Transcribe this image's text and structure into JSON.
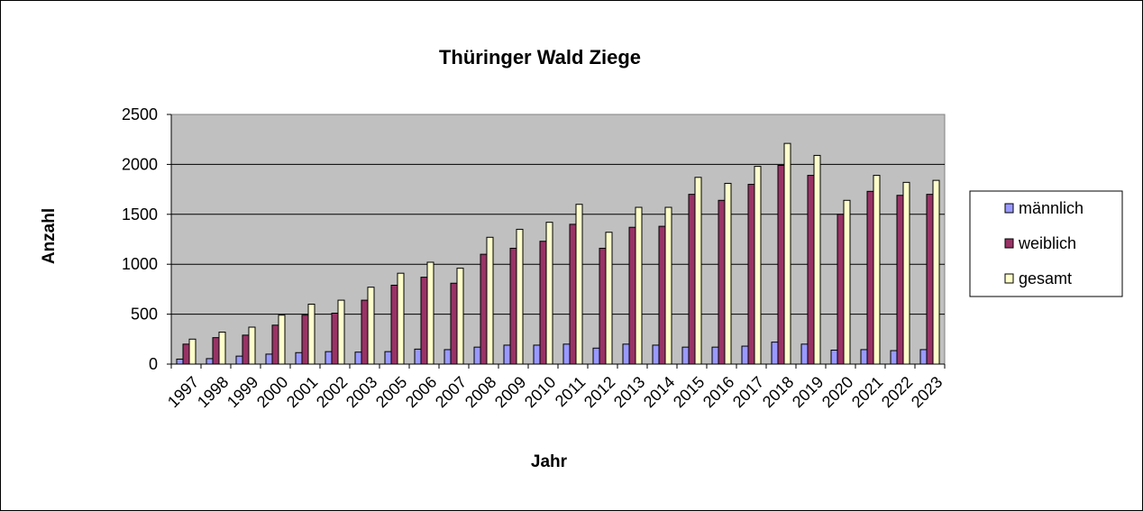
{
  "chart_data": {
    "type": "bar",
    "title": "Thüringer Wald Ziege",
    "xlabel": "Jahr",
    "ylabel": "Anzahl",
    "ylim": [
      0,
      2500
    ],
    "yticks": [
      0,
      500,
      1000,
      1500,
      2000,
      2500
    ],
    "grid": true,
    "legend_position": "right",
    "plot_background": "#c0c0c0",
    "categories": [
      "1997",
      "1998",
      "1999",
      "2000",
      "2001",
      "2002",
      "2003",
      "2005",
      "2006",
      "2007",
      "2008",
      "2009",
      "2010",
      "2011",
      "2012",
      "2013",
      "2014",
      "2015",
      "2016",
      "2017",
      "2018",
      "2019",
      "2020",
      "2021",
      "2022",
      "2023"
    ],
    "series": [
      {
        "name": "männlich",
        "color": "#9999ff",
        "values": [
          50,
          55,
          80,
          100,
          115,
          125,
          120,
          125,
          150,
          145,
          170,
          190,
          190,
          200,
          160,
          200,
          190,
          170,
          170,
          180,
          220,
          200,
          140,
          145,
          135,
          145
        ]
      },
      {
        "name": "weiblich",
        "color": "#993366",
        "values": [
          200,
          265,
          290,
          390,
          490,
          510,
          640,
          790,
          870,
          810,
          1100,
          1160,
          1230,
          1400,
          1160,
          1370,
          1380,
          1700,
          1640,
          1800,
          1990,
          1890,
          1500,
          1730,
          1690,
          1700
        ]
      },
      {
        "name": "gesamt",
        "color": "#ffffcc",
        "values": [
          250,
          320,
          370,
          490,
          600,
          640,
          770,
          910,
          1020,
          960,
          1270,
          1350,
          1420,
          1600,
          1320,
          1570,
          1570,
          1870,
          1810,
          1980,
          2210,
          2090,
          1640,
          1890,
          1820,
          1840
        ]
      }
    ]
  }
}
